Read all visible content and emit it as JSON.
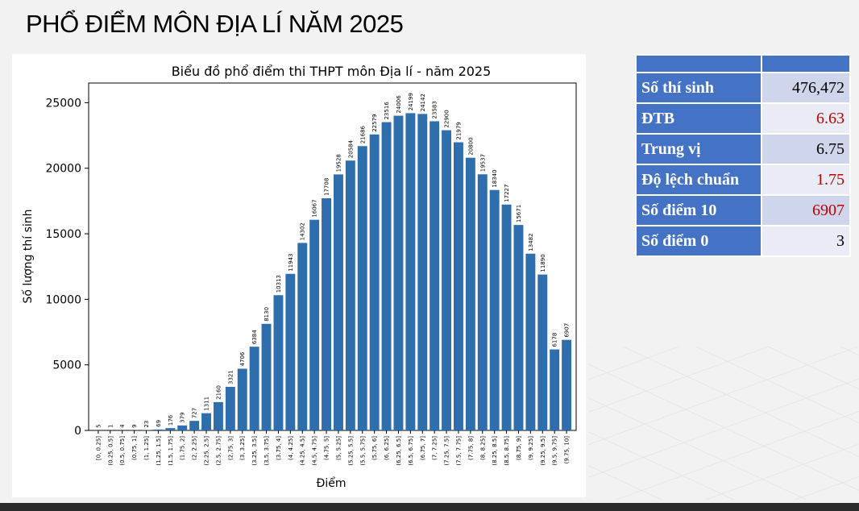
{
  "slide": {
    "title": "PHỔ ĐIỂM MÔN ĐỊA LÍ NĂM 2025"
  },
  "stats_table": {
    "header": [
      "",
      ""
    ],
    "rows": [
      {
        "label": "Số thí sinh",
        "value": "476,472",
        "color": "#000000"
      },
      {
        "label": "ĐTB",
        "value": "6.63",
        "color": "#c00000"
      },
      {
        "label": "Trung vị",
        "value": "6.75",
        "color": "#000000"
      },
      {
        "label": "Độ lệch chuẩn",
        "value": "1.75",
        "color": "#c00000"
      },
      {
        "label": "Số điểm 10",
        "value": "6907",
        "color": "#c00000"
      },
      {
        "label": "Số điểm 0",
        "value": "3",
        "color": "#000000"
      }
    ]
  },
  "chart_data": {
    "type": "bar",
    "title": "Biểu đồ phổ điểm thi THPT môn Địa lí - năm 2025",
    "xlabel": "Điểm",
    "ylabel": "Số lượng thí sinh",
    "ylim": [
      0,
      26500
    ],
    "yticks": [
      0,
      5000,
      10000,
      15000,
      20000,
      25000
    ],
    "bar_color": "#2f6ead",
    "grid": false,
    "categories": [
      "[0, 0.25]",
      "(0.25, 0.5]",
      "(0.5, 0.75]",
      "(0.75, 1]",
      "(1, 1.25]",
      "(1.25, 1.5]",
      "(1.5, 1.75]",
      "(1.75, 2]",
      "(2, 2.25]",
      "(2.25, 2.5]",
      "(2.5, 2.75]",
      "(2.75, 3]",
      "(3, 3.25]",
      "(3.25, 3.5]",
      "(3.5, 3.75]",
      "(3.75, 4]",
      "(4, 4.25]",
      "(4.25, 4.5]",
      "(4.5, 4.75]",
      "(4.75, 5]",
      "(5, 5.25]",
      "(5.25, 5.5]",
      "(5.5, 5.75]",
      "(5.75, 6]",
      "(6, 6.25]",
      "(6.25, 6.5]",
      "(6.5, 6.75]",
      "(6.75, 7]",
      "(7, 7.25]",
      "(7.25, 7.5]",
      "(7.5, 7.75]",
      "(7.75, 8]",
      "(8, 8.25]",
      "(8.25, 8.5]",
      "(8.5, 8.75]",
      "(8.75, 9]",
      "(9, 9.25]",
      "(9.25, 9.5]",
      "(9.5, 9.75]",
      "(9.75, 10]"
    ],
    "values": [
      5,
      1,
      4,
      9,
      23,
      69,
      176,
      379,
      727,
      1311,
      2160,
      3321,
      4706,
      6384,
      8130,
      10313,
      11943,
      14302,
      16067,
      17708,
      19528,
      20584,
      21686,
      22579,
      23516,
      24006,
      24199,
      24142,
      23583,
      22900,
      21979,
      20800,
      19537,
      18340,
      17227,
      15671,
      13482,
      11890,
      6178,
      6907
    ]
  }
}
